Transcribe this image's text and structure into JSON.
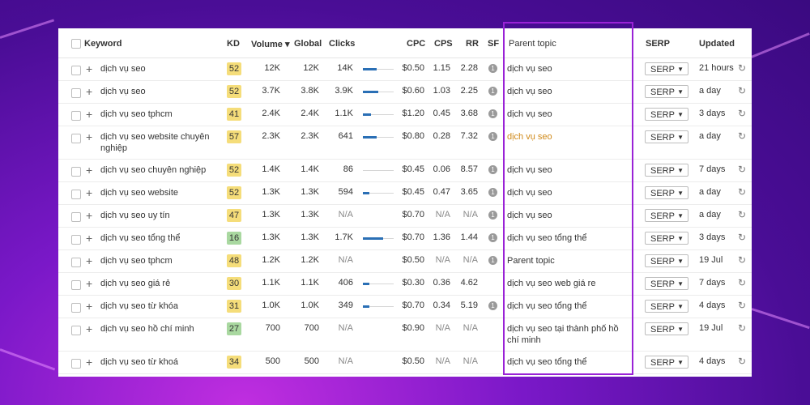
{
  "headers": {
    "keyword": "Keyword",
    "kd": "KD",
    "volume": "Volume ▾",
    "global": "Global",
    "clicks": "Clicks",
    "cpc": "CPC",
    "cps": "CPS",
    "rr": "RR",
    "sf": "SF",
    "parent_topic": "Parent topic",
    "serp": "SERP",
    "updated": "Updated"
  },
  "serp_label": "SERP",
  "colors": {
    "kd_yellow": "#f5dd7a",
    "kd_green": "#a9d8a0",
    "click_bar": "#2a6fb5",
    "highlight": "#9a22d6"
  },
  "rows": [
    {
      "keyword": "dịch vụ seo",
      "kd": "52",
      "kd_color": "yellow",
      "volume": "12K",
      "global": "12K",
      "clicks": "14K",
      "click_fill": 0.45,
      "cpc": "$0.50",
      "cps": "1.15",
      "rr": "2.28",
      "sf": "1",
      "parent": "dịch vụ seo",
      "updated": "21 hours"
    },
    {
      "keyword": "dịch vụ seo",
      "kd": "52",
      "kd_color": "yellow",
      "volume": "3.7K",
      "global": "3.8K",
      "clicks": "3.9K",
      "click_fill": 0.5,
      "cpc": "$0.60",
      "cps": "1.03",
      "rr": "2.25",
      "sf": "1",
      "parent": "dịch vụ seo",
      "updated": "a day"
    },
    {
      "keyword": "dịch vụ seo tphcm",
      "kd": "41",
      "kd_color": "yellow",
      "volume": "2.4K",
      "global": "2.4K",
      "clicks": "1.1K",
      "click_fill": 0.25,
      "cpc": "$1.20",
      "cps": "0.45",
      "rr": "3.68",
      "sf": "1",
      "parent": "dịch vụ seo",
      "updated": "3 days"
    },
    {
      "keyword": "dịch vụ seo website chuyên nghiệp",
      "kd": "57",
      "kd_color": "yellow",
      "volume": "2.3K",
      "global": "2.3K",
      "clicks": "641",
      "click_fill": 0.45,
      "cpc": "$0.80",
      "cps": "0.28",
      "rr": "7.32",
      "sf": "1",
      "parent": "dịch vụ seo",
      "parent_orange": true,
      "updated": "a day"
    },
    {
      "keyword": "dịch vụ seo chuyên nghiệp",
      "kd": "52",
      "kd_color": "yellow",
      "volume": "1.4K",
      "global": "1.4K",
      "clicks": "86",
      "click_fill": 0,
      "cpc": "$0.45",
      "cps": "0.06",
      "rr": "8.57",
      "sf": "1",
      "parent": "dịch vụ seo",
      "updated": "7 days"
    },
    {
      "keyword": "dịch vụ seo website",
      "kd": "52",
      "kd_color": "yellow",
      "volume": "1.3K",
      "global": "1.3K",
      "clicks": "594",
      "click_fill": 0.2,
      "cpc": "$0.45",
      "cps": "0.47",
      "rr": "3.65",
      "sf": "1",
      "parent": "dịch vụ seo",
      "updated": "a day"
    },
    {
      "keyword": "dịch vụ seo uy tín",
      "kd": "47",
      "kd_color": "yellow",
      "volume": "1.3K",
      "global": "1.3K",
      "clicks": "N/A",
      "click_fill": 0,
      "cpc": "$0.70",
      "cps": "N/A",
      "rr": "N/A",
      "sf": "1",
      "parent": "dịch vụ seo",
      "updated": "a day"
    },
    {
      "keyword": "dịch vụ seo tổng thể",
      "kd": "16",
      "kd_color": "green",
      "volume": "1.3K",
      "global": "1.3K",
      "clicks": "1.7K",
      "click_fill": 0.65,
      "cpc": "$0.70",
      "cps": "1.36",
      "rr": "1.44",
      "sf": "1",
      "parent": "dịch vụ seo tổng thể",
      "updated": "3 days"
    },
    {
      "keyword": "dịch vụ seo tphcm",
      "kd": "48",
      "kd_color": "yellow",
      "volume": "1.2K",
      "global": "1.2K",
      "clicks": "N/A",
      "click_fill": 0,
      "cpc": "$0.50",
      "cps": "N/A",
      "rr": "N/A",
      "sf": "1",
      "parent": "Parent topic",
      "updated": "19 Jul"
    },
    {
      "keyword": "dịch vụ seo giá rẻ",
      "kd": "30",
      "kd_color": "yellow",
      "volume": "1.1K",
      "global": "1.1K",
      "clicks": "406",
      "click_fill": 0.2,
      "cpc": "$0.30",
      "cps": "0.36",
      "rr": "4.62",
      "sf": "",
      "parent": "dịch vụ seo web giá re",
      "updated": "7 days"
    },
    {
      "keyword": "dịch vụ seo từ khóa",
      "kd": "31",
      "kd_color": "yellow",
      "volume": "1.0K",
      "global": "1.0K",
      "clicks": "349",
      "click_fill": 0.2,
      "cpc": "$0.70",
      "cps": "0.34",
      "rr": "5.19",
      "sf": "1",
      "parent": "dịch vụ seo tổng thể",
      "updated": "4 days"
    },
    {
      "keyword": "dịch vụ seo hồ chí minh",
      "kd": "27",
      "kd_color": "green",
      "volume": "700",
      "global": "700",
      "clicks": "N/A",
      "click_fill": 0,
      "cpc": "$0.90",
      "cps": "N/A",
      "rr": "N/A",
      "sf": "",
      "parent": "dịch vụ seo tại thành phố hồ chí minh",
      "updated": "19 Jul"
    },
    {
      "keyword": "dịch vụ seo từ khoá",
      "kd": "34",
      "kd_color": "yellow",
      "volume": "500",
      "global": "500",
      "clicks": "N/A",
      "click_fill": 0,
      "cpc": "$0.50",
      "cps": "N/A",
      "rr": "N/A",
      "sf": "",
      "parent": "dịch vụ seo tổng thể",
      "updated": "4 days"
    }
  ]
}
